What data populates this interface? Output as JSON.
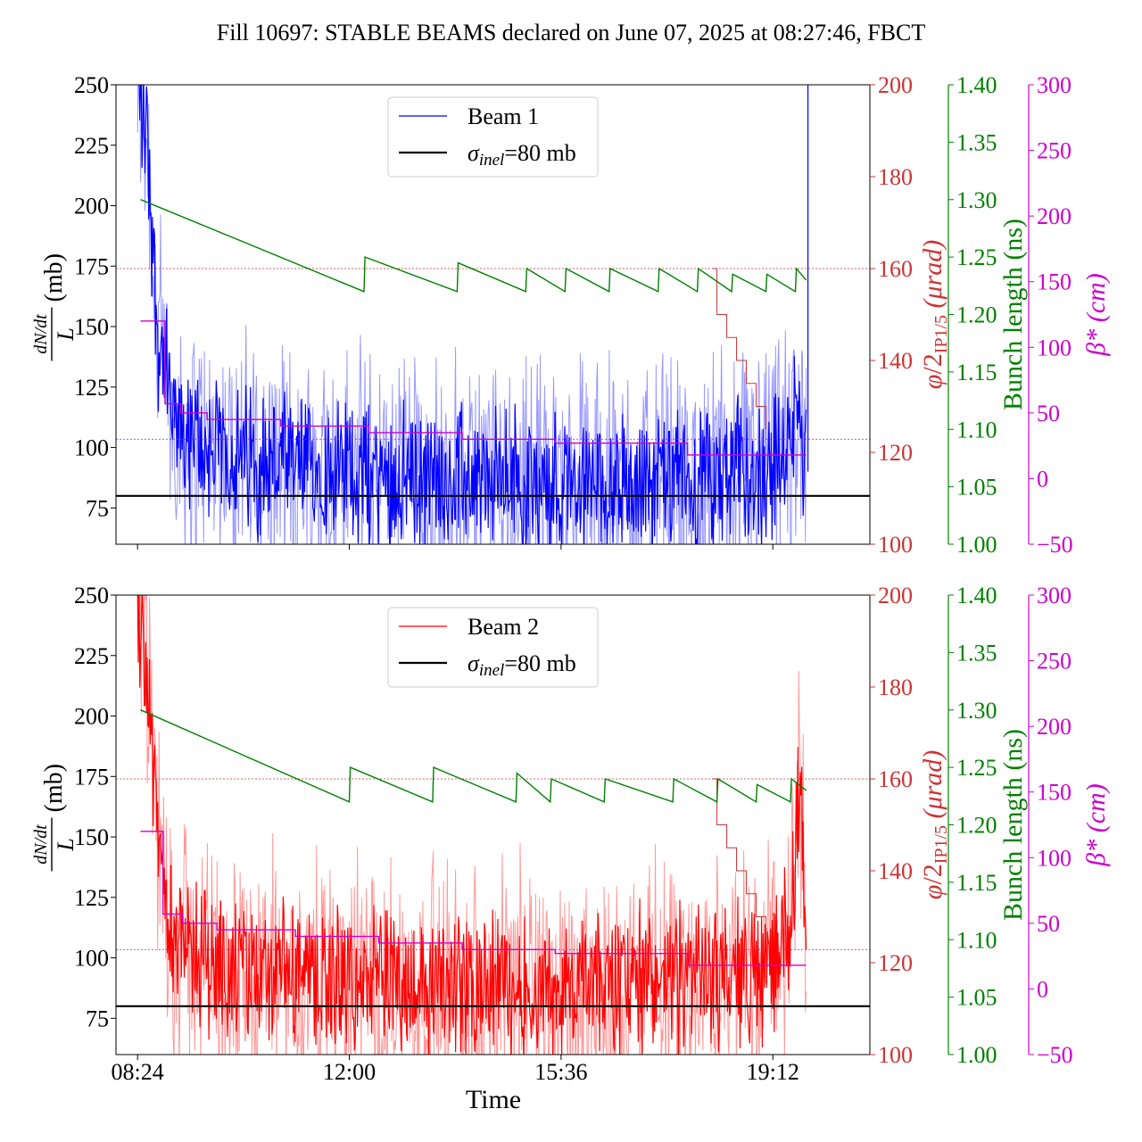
{
  "title": "Fill 10697: STABLE BEAMS declared on June 07, 2025 at 08:27:46, FBCT",
  "colors": {
    "beam1": "#0000ff",
    "beam1_light": "#9999ff",
    "beam2": "#ff0000",
    "beam2_light": "#ff9999",
    "crossing": "#cc3333",
    "bunch": "#008000",
    "beta": "#cc00cc",
    "sigma": "#000000"
  },
  "chart_data": [
    {
      "type": "line",
      "name": "beam1-panel",
      "legend": {
        "placement": "upper-center",
        "entries": [
          "Beam 1",
          "σinel=80 mb"
        ]
      },
      "xlabel": "",
      "ylabel_html": "dN/dt / L (mb)",
      "ylim": [
        60,
        250
      ],
      "yticks": [
        "75",
        "100",
        "125",
        "150",
        "175",
        "200",
        "225",
        "250"
      ],
      "xlim": [
        "08:02",
        "20:51"
      ],
      "xticks": [
        "08:24",
        "12:00",
        "15:36",
        "19:12"
      ],
      "series": [
        {
          "name": "Beam 1",
          "axis": "left",
          "color": "#0000ff",
          "x": [
            "08:24",
            "08:34",
            "08:44",
            "09:00",
            "09:30",
            "10:00",
            "11:00",
            "12:00",
            "13:00",
            "14:00",
            "15:00",
            "16:00",
            "17:00",
            "18:00",
            "19:00",
            "19:30",
            "19:40",
            "19:46"
          ],
          "y": [
            250,
            230,
            150,
            110,
            100,
            96,
            92,
            90,
            88,
            86,
            86,
            85,
            86,
            86,
            90,
            100,
            120,
            85
          ],
          "band_spread": 25
        },
        {
          "name": "σinel=80 mb",
          "axis": "left",
          "color": "#000000",
          "value": 80
        },
        {
          "name": "crossing angle",
          "axis": "right1",
          "color": "#cc3333",
          "x": [
            "18:10",
            "18:15",
            "18:25",
            "18:35",
            "18:45",
            "18:55",
            "19:05"
          ],
          "y": [
            160,
            150,
            145,
            140,
            135,
            130,
            125
          ],
          "reference": 160
        },
        {
          "name": "bunch length",
          "axis": "right2",
          "color": "#008000",
          "x": [
            "08:27",
            "12:15",
            "12:16",
            "13:50",
            "13:51",
            "15:00",
            "15:01",
            "15:40",
            "15:41",
            "16:25",
            "16:26",
            "17:15",
            "17:16",
            "17:55",
            "17:56",
            "18:30",
            "18:31",
            "19:05",
            "19:06",
            "19:35",
            "19:36",
            "19:46"
          ],
          "y": [
            1.3,
            1.22,
            1.25,
            1.22,
            1.245,
            1.22,
            1.24,
            1.22,
            1.24,
            1.22,
            1.24,
            1.22,
            1.24,
            1.22,
            1.24,
            1.22,
            1.235,
            1.22,
            1.235,
            1.22,
            1.24,
            1.23
          ]
        },
        {
          "name": "beta*",
          "axis": "right3",
          "color": "#cc00cc",
          "x": [
            "08:27",
            "08:52",
            "09:08",
            "09:35",
            "10:50",
            "12:20",
            "13:55",
            "15:30",
            "17:45",
            "19:46"
          ],
          "y": [
            120,
            57,
            50,
            45,
            40,
            35,
            30,
            27,
            18,
            18
          ],
          "reference": 30
        }
      ]
    },
    {
      "type": "line",
      "name": "beam2-panel",
      "legend": {
        "placement": "upper-center",
        "entries": [
          "Beam 2",
          "σinel=80 mb"
        ]
      },
      "xlabel": "Time",
      "ylabel_html": "dN/dt / L (mb)",
      "ylim": [
        60,
        250
      ],
      "yticks": [
        "75",
        "100",
        "125",
        "150",
        "175",
        "200",
        "225",
        "250"
      ],
      "xlim": [
        "08:02",
        "20:51"
      ],
      "xticks": [
        "08:24",
        "12:00",
        "15:36",
        "19:12"
      ],
      "series": [
        {
          "name": "Beam 2",
          "axis": "left",
          "color": "#ff0000",
          "x": [
            "08:24",
            "08:34",
            "08:44",
            "09:00",
            "09:30",
            "10:00",
            "11:00",
            "12:00",
            "13:00",
            "14:00",
            "15:00",
            "16:00",
            "17:00",
            "18:00",
            "19:00",
            "19:30",
            "19:40",
            "19:46"
          ],
          "y": [
            250,
            220,
            150,
            110,
            100,
            95,
            92,
            90,
            90,
            88,
            88,
            88,
            90,
            92,
            94,
            110,
            180,
            95
          ],
          "band_spread": 25
        },
        {
          "name": "σinel=80 mb",
          "axis": "left",
          "color": "#000000",
          "value": 80
        },
        {
          "name": "crossing angle",
          "axis": "right1",
          "color": "#cc3333",
          "x": [
            "18:10",
            "18:15",
            "18:25",
            "18:35",
            "18:45",
            "18:55",
            "19:05"
          ],
          "y": [
            160,
            150,
            145,
            140,
            135,
            130,
            125
          ],
          "reference": 160
        },
        {
          "name": "bunch length",
          "axis": "right2",
          "color": "#008000",
          "x": [
            "08:27",
            "12:00",
            "12:01",
            "13:25",
            "13:26",
            "14:50",
            "14:51",
            "15:25",
            "15:26",
            "16:20",
            "16:21",
            "17:30",
            "17:31",
            "18:15",
            "18:16",
            "18:55",
            "18:56",
            "19:30",
            "19:31",
            "19:46"
          ],
          "y": [
            1.3,
            1.22,
            1.25,
            1.22,
            1.25,
            1.22,
            1.245,
            1.22,
            1.24,
            1.22,
            1.24,
            1.22,
            1.24,
            1.22,
            1.24,
            1.22,
            1.235,
            1.22,
            1.24,
            1.23
          ]
        },
        {
          "name": "beta*",
          "axis": "right3",
          "color": "#cc00cc",
          "x": [
            "08:27",
            "08:50",
            "09:10",
            "09:45",
            "11:05",
            "12:30",
            "13:55",
            "15:30",
            "17:45",
            "19:46"
          ],
          "y": [
            120,
            57,
            50,
            45,
            40,
            35,
            30,
            27,
            18,
            18
          ],
          "reference": 30
        }
      ]
    }
  ],
  "axes": {
    "left": {
      "ticks": [
        "75",
        "100",
        "125",
        "150",
        "175",
        "200",
        "225",
        "250"
      ]
    },
    "right1": {
      "label": "φ/2IP1/5 (μrad)",
      "ticks": [
        "100",
        "120",
        "140",
        "160",
        "180",
        "200"
      ],
      "range": [
        100,
        200
      ]
    },
    "right2": {
      "label": "Bunch length (ns)",
      "ticks": [
        "1.00",
        "1.05",
        "1.10",
        "1.15",
        "1.20",
        "1.25",
        "1.30",
        "1.35",
        "1.40"
      ],
      "range": [
        1.0,
        1.4
      ]
    },
    "right3": {
      "label": "β* (cm)",
      "ticks": [
        "−50",
        "0",
        "50",
        "100",
        "150",
        "200",
        "250",
        "300"
      ],
      "range": [
        -50,
        300
      ]
    }
  },
  "xaxis_label": "Time"
}
